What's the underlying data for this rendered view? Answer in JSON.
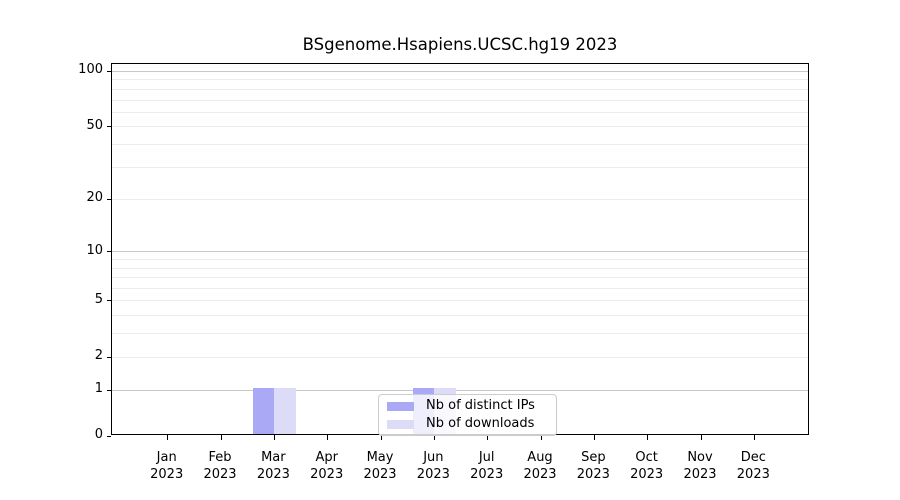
{
  "chart_data": {
    "type": "bar",
    "title": "BSgenome.Hsapiens.UCSC.hg19 2023",
    "categories": [
      "Jan 2023",
      "Feb 2023",
      "Mar 2023",
      "Apr 2023",
      "May 2023",
      "Jun 2023",
      "Jul 2023",
      "Aug 2023",
      "Sep 2023",
      "Oct 2023",
      "Nov 2023",
      "Dec 2023"
    ],
    "series": [
      {
        "name": "Nb of distinct IPs",
        "color": "#a9a9f6",
        "values": [
          0,
          0,
          1,
          0,
          0,
          1,
          0,
          0,
          0,
          0,
          0,
          0
        ]
      },
      {
        "name": "Nb of downloads",
        "color": "#dcdcf8",
        "values": [
          0,
          0,
          1,
          0,
          0,
          1,
          0,
          0,
          0,
          0,
          0,
          0
        ]
      }
    ],
    "xlabel": "",
    "ylabel": "",
    "y_axis": {
      "scale": "log1p",
      "tick_values": [
        100,
        50,
        20,
        10,
        5,
        2,
        1,
        0
      ],
      "tick_labels": [
        "100",
        "50",
        "20",
        "10",
        "5",
        "2",
        "1",
        "0"
      ],
      "ylim": [
        0,
        110
      ]
    },
    "grid": "horizontal, light gray, log minor lines on",
    "legend": {
      "position": "lower center",
      "entries": [
        "Nb of distinct IPs",
        "Nb of downloads"
      ]
    }
  }
}
